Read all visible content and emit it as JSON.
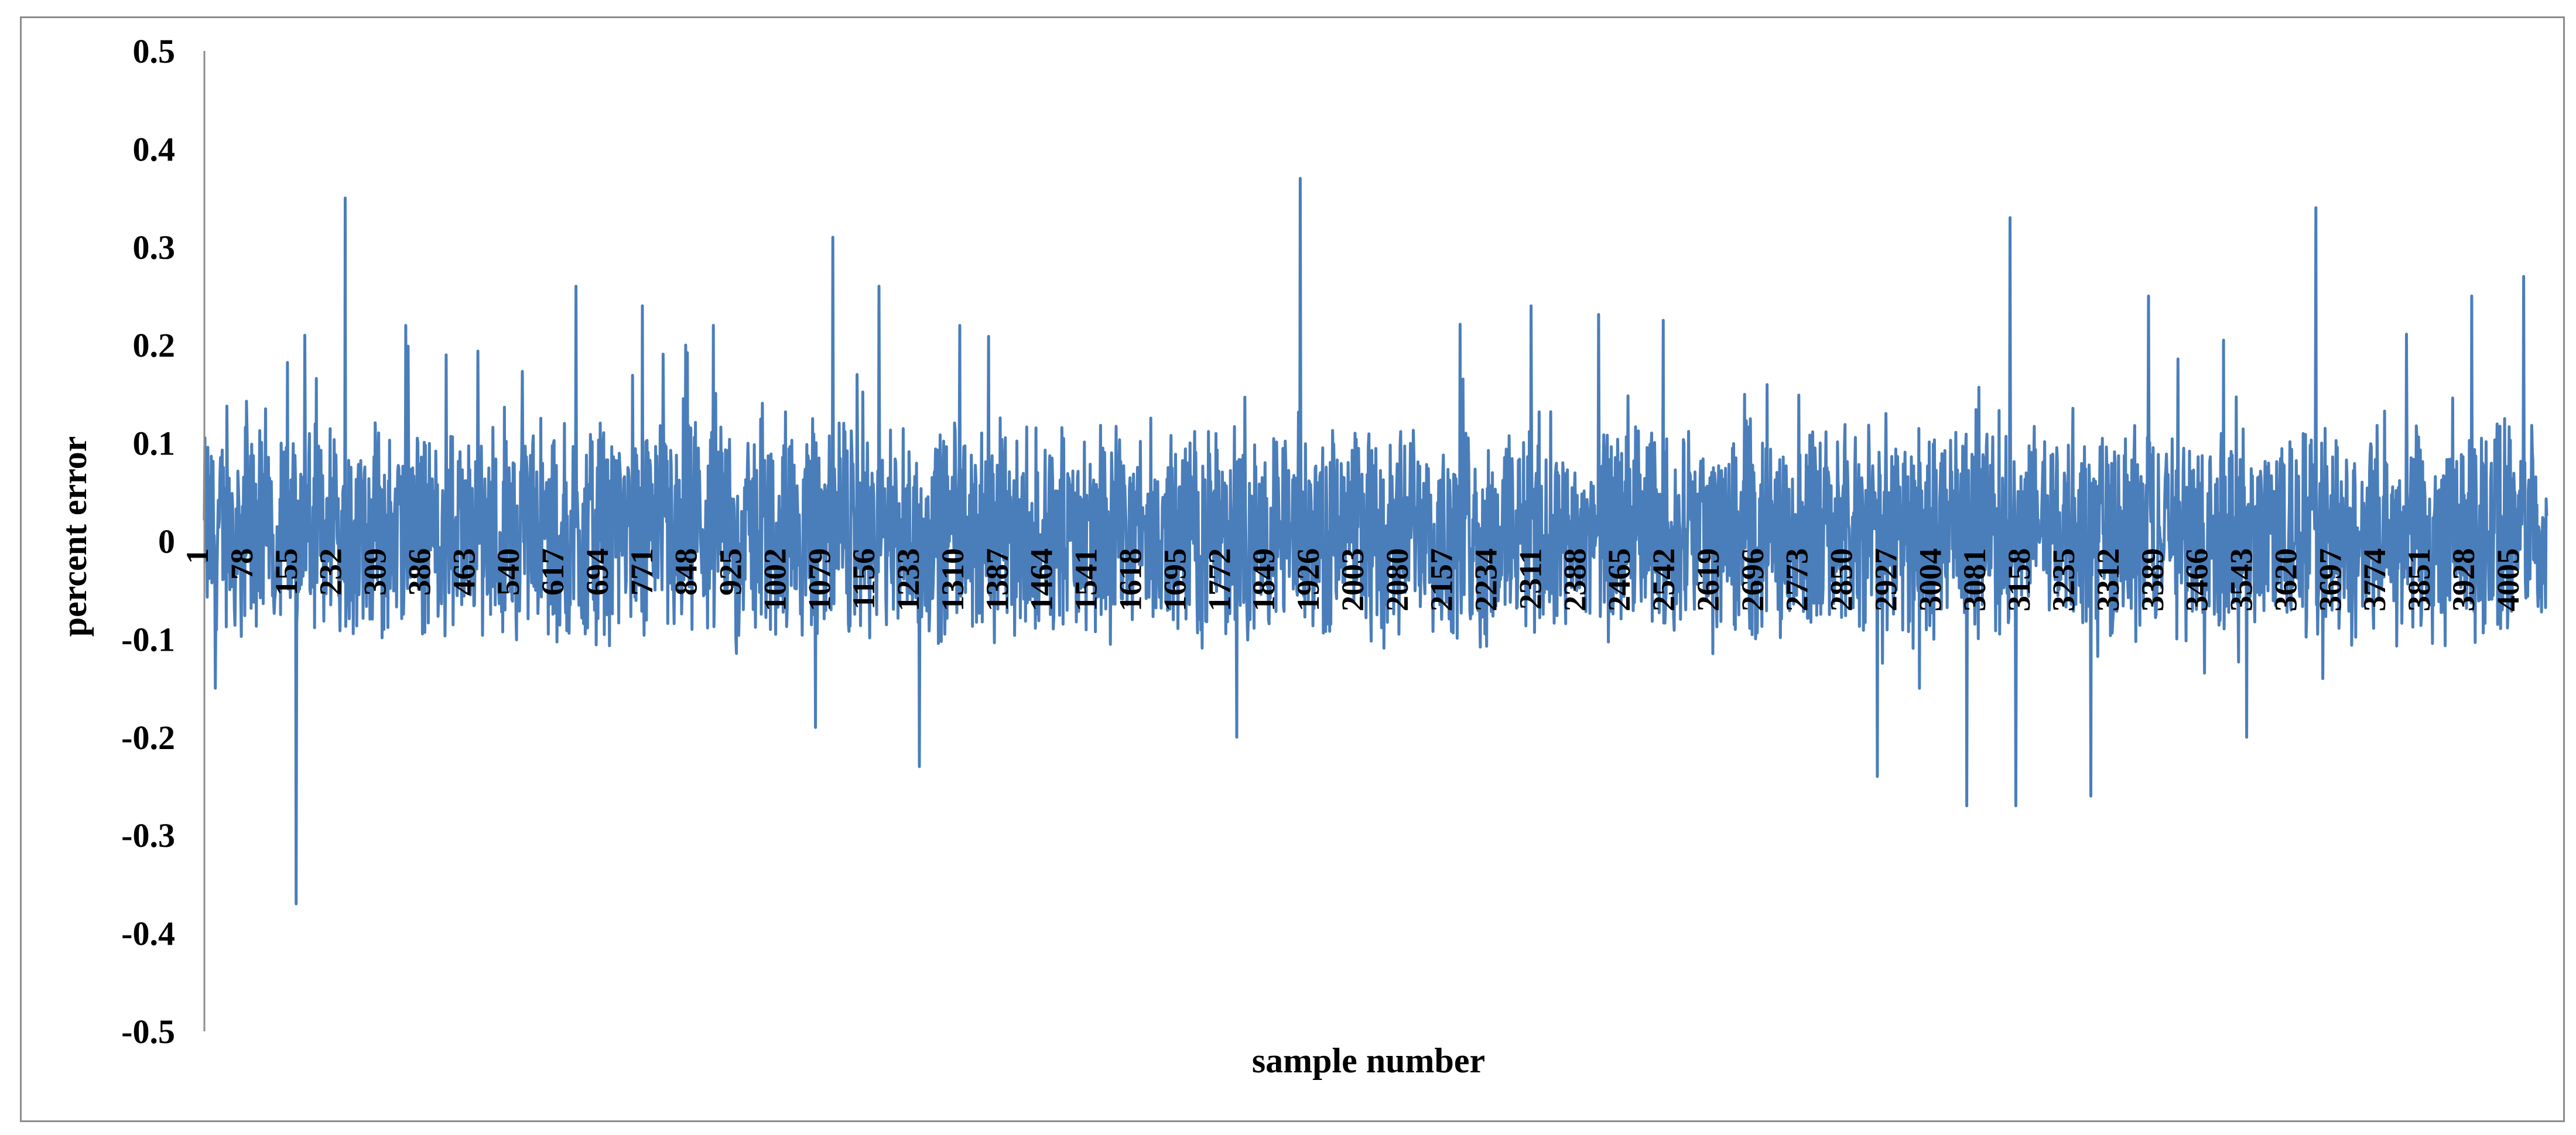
{
  "chart_data": {
    "type": "line",
    "title": "",
    "xlabel": "sample number",
    "ylabel": "percent error",
    "ylim": [
      -0.5,
      0.5
    ],
    "y_ticks": [
      "0.5",
      "0.4",
      "0.3",
      "0.2",
      "0.1",
      "0",
      "-0.1",
      "-0.2",
      "-0.3",
      "-0.4",
      "-0.5"
    ],
    "x_range": [
      1,
      4060
    ],
    "x_tick_labels": [
      "1",
      "78",
      "155",
      "232",
      "309",
      "386",
      "463",
      "540",
      "617",
      "694",
      "771",
      "848",
      "925",
      "1002",
      "1079",
      "1156",
      "1233",
      "1310",
      "1387",
      "1464",
      "1541",
      "1618",
      "1695",
      "1772",
      "1849",
      "1926",
      "2003",
      "2080",
      "2157",
      "2234",
      "2311",
      "2388",
      "2465",
      "2542",
      "2619",
      "2696",
      "2773",
      "2850",
      "2927",
      "3004",
      "3081",
      "3158",
      "3235",
      "3312",
      "3389",
      "3466",
      "3543",
      "3620",
      "3697",
      "3774",
      "3851",
      "3928",
      "4005"
    ],
    "legend": "none",
    "grid": false,
    "series": [
      {
        "color": "#4a7ebb",
        "peaks": [
          {
            "x": 20,
            "y": -0.15
          },
          {
            "x": 160,
            "y": -0.37
          },
          {
            "x": 175,
            "y": 0.21
          },
          {
            "x": 245,
            "y": 0.35
          },
          {
            "x": 350,
            "y": 0.22
          },
          {
            "x": 420,
            "y": 0.19
          },
          {
            "x": 645,
            "y": 0.26
          },
          {
            "x": 760,
            "y": 0.24
          },
          {
            "x": 835,
            "y": 0.2
          },
          {
            "x": 1060,
            "y": -0.19
          },
          {
            "x": 1090,
            "y": 0.31
          },
          {
            "x": 1170,
            "y": 0.26
          },
          {
            "x": 1240,
            "y": -0.23
          },
          {
            "x": 1310,
            "y": 0.22
          },
          {
            "x": 1790,
            "y": -0.2
          },
          {
            "x": 1900,
            "y": 0.37
          },
          {
            "x": 2300,
            "y": 0.24
          },
          {
            "x": 2900,
            "y": -0.24
          },
          {
            "x": 3055,
            "y": -0.27
          },
          {
            "x": 3130,
            "y": 0.33
          },
          {
            "x": 3140,
            "y": -0.27
          },
          {
            "x": 3270,
            "y": -0.26
          },
          {
            "x": 3370,
            "y": 0.25
          },
          {
            "x": 3540,
            "y": -0.2
          },
          {
            "x": 3660,
            "y": 0.34
          },
          {
            "x": 3930,
            "y": 0.25
          },
          {
            "x": 4020,
            "y": 0.27
          }
        ]
      }
    ]
  }
}
